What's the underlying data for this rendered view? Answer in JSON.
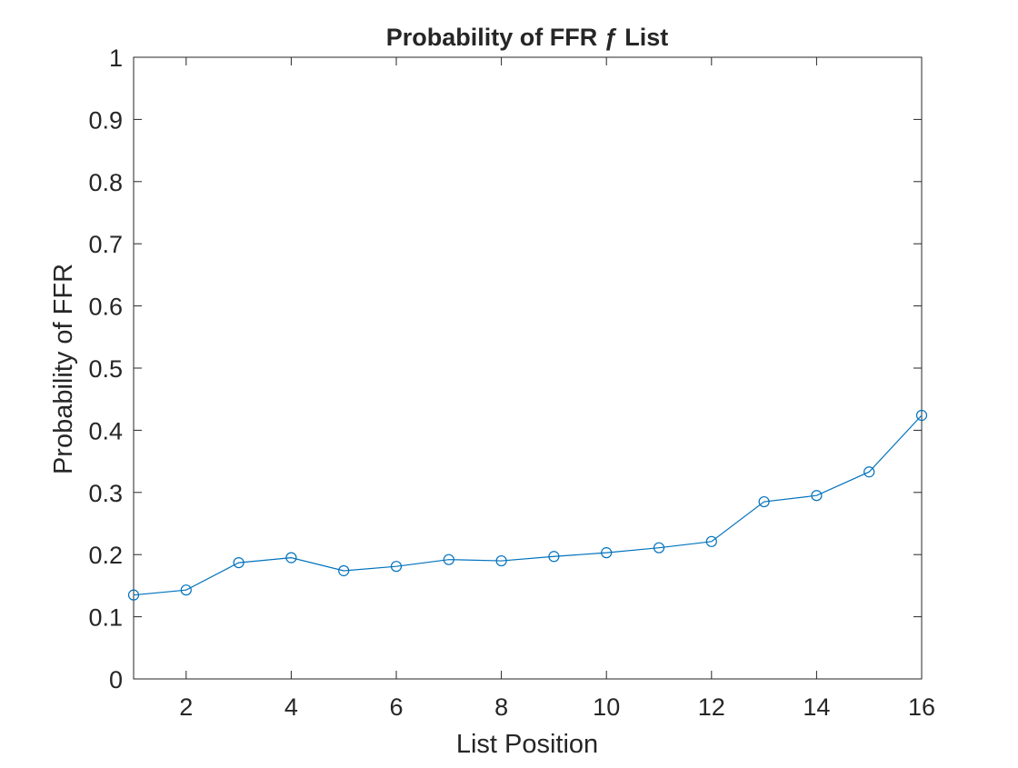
{
  "chart_data": {
    "type": "line",
    "title": "Probability of FFR ƒ List",
    "xlabel": "List Position",
    "ylabel": "Probability of FFR",
    "xlim": [
      1,
      16
    ],
    "ylim": [
      0,
      1
    ],
    "xticks": [
      2,
      4,
      6,
      8,
      10,
      12,
      14,
      16
    ],
    "xtick_labels": [
      "2",
      "4",
      "6",
      "8",
      "10",
      "12",
      "14",
      "16"
    ],
    "yticks": [
      0,
      0.1,
      0.2,
      0.3,
      0.4,
      0.5,
      0.6,
      0.7,
      0.8,
      0.9,
      1
    ],
    "ytick_labels": [
      "0",
      "0.1",
      "0.2",
      "0.3",
      "0.4",
      "0.5",
      "0.6",
      "0.7",
      "0.8",
      "0.9",
      "1"
    ],
    "grid": false,
    "legend": "none",
    "marker": "circle",
    "series_color": "#0072BD",
    "axis_color": "#262626",
    "x": [
      1,
      2,
      3,
      4,
      5,
      6,
      7,
      8,
      9,
      10,
      11,
      12,
      13,
      14,
      15,
      16
    ],
    "series": [
      {
        "values": [
          0.135,
          0.143,
          0.187,
          0.195,
          0.174,
          0.181,
          0.192,
          0.19,
          0.197,
          0.203,
          0.211,
          0.221,
          0.285,
          0.295,
          0.333,
          0.424
        ]
      }
    ]
  }
}
